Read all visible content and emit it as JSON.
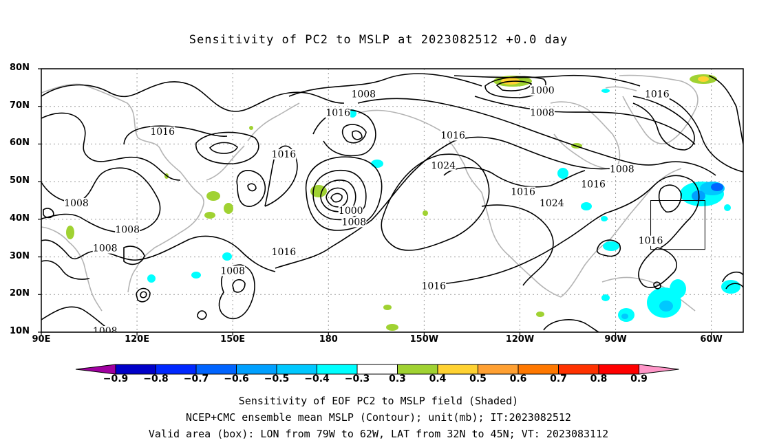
{
  "title": "Sensitivity of PC2 to MSLP at 2023082512 +0.0 day",
  "map": {
    "lat_labels": [
      "80N",
      "70N",
      "60N",
      "50N",
      "40N",
      "30N",
      "20N",
      "10N"
    ],
    "lon_labels": [
      "90E",
      "120E",
      "150E",
      "180",
      "150W",
      "120W",
      "90W",
      "60W"
    ],
    "contour_labels": [
      {
        "text": "1016",
        "lon": 128,
        "lat": 63
      },
      {
        "text": "1016",
        "lon": 166,
        "lat": 57
      },
      {
        "text": "1016",
        "lon": 183,
        "lat": 68
      },
      {
        "text": "1008",
        "lon": 191,
        "lat": 73
      },
      {
        "text": "1016",
        "lon": 219,
        "lat": 62
      },
      {
        "text": "1024",
        "lon": 216,
        "lat": 54
      },
      {
        "text": "1000",
        "lon": 247,
        "lat": 74
      },
      {
        "text": "1008",
        "lon": 247,
        "lat": 68
      },
      {
        "text": "1016",
        "lon": 283,
        "lat": 73
      },
      {
        "text": "1008",
        "lon": 272,
        "lat": 53
      },
      {
        "text": "1016",
        "lon": 263,
        "lat": 49
      },
      {
        "text": "1016",
        "lon": 241,
        "lat": 47
      },
      {
        "text": "1024",
        "lon": 250,
        "lat": 44
      },
      {
        "text": "1000",
        "lon": 187,
        "lat": 42
      },
      {
        "text": "1008",
        "lon": 188,
        "lat": 39
      },
      {
        "text": "1008",
        "lon": 101,
        "lat": 44
      },
      {
        "text": "1008",
        "lon": 117,
        "lat": 37
      },
      {
        "text": "1008",
        "lon": 110,
        "lat": 32
      },
      {
        "text": "1016",
        "lon": 166,
        "lat": 31
      },
      {
        "text": "1008",
        "lon": 150,
        "lat": 26
      },
      {
        "text": "1016",
        "lon": 213,
        "lat": 22
      },
      {
        "text": "1008",
        "lon": 110,
        "lat": 10
      },
      {
        "text": "1016",
        "lon": 281,
        "lat": 34
      }
    ],
    "valid_box": {
      "lon_west": -79,
      "lon_east": -62,
      "lat_south": 32,
      "lat_north": 45
    }
  },
  "colorbar": {
    "labels": [
      "-0.9",
      "-0.8",
      "-0.7",
      "-0.6",
      "-0.5",
      "-0.4",
      "-0.3",
      "0.3",
      "0.4",
      "0.5",
      "0.6",
      "0.7",
      "0.8",
      "0.9"
    ],
    "colors": [
      "#a000a0",
      "#0000c8",
      "#0028ff",
      "#0064ff",
      "#00a0ff",
      "#00c8ff",
      "#00ffff",
      "#ffffff",
      "#a0d232",
      "#ffd232",
      "#ffa032",
      "#ff7800",
      "#ff3200",
      "#ff0000",
      "#ff96c8"
    ]
  },
  "captions": [
    "Sensitivity of EOF PC2 to MSLP field (Shaded)",
    "NCEP+CMC ensemble mean MSLP (Contour); unit(mb); IT:2023082512",
    "Valid area (box): LON from 79W to 62W, LAT from 32N to 45N; VT: 2023083112"
  ]
}
